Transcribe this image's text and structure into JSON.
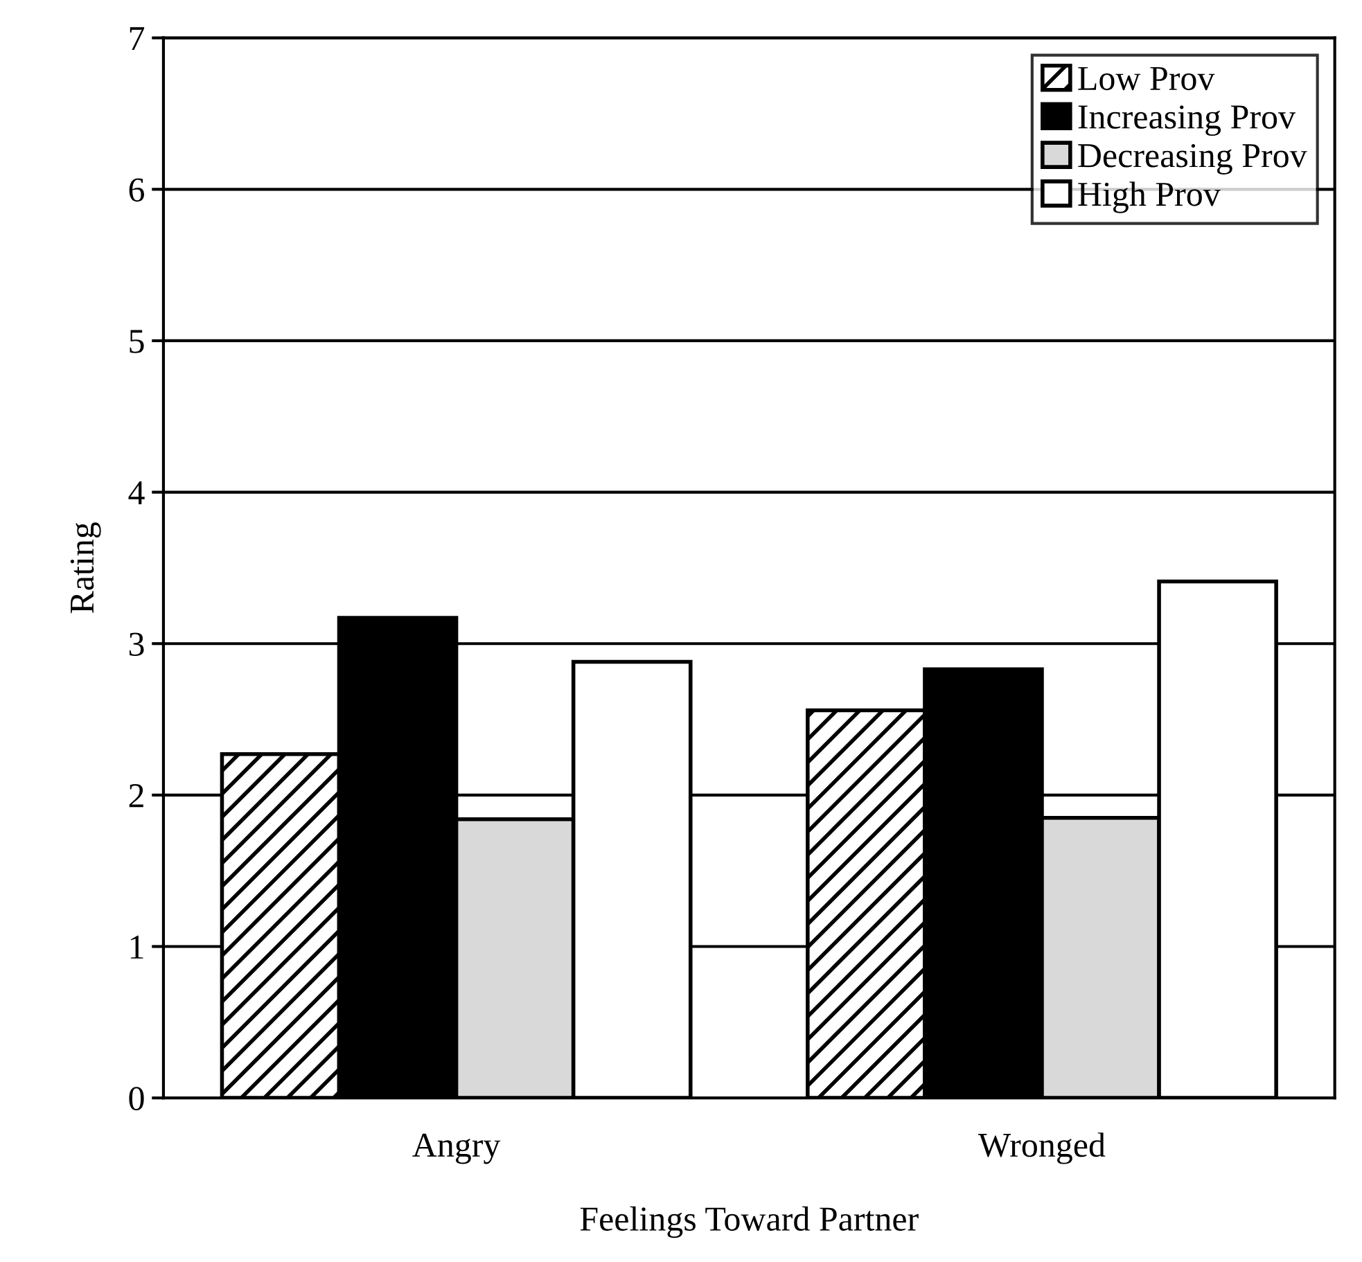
{
  "chart_data": {
    "type": "bar",
    "xlabel": "Feelings Toward Partner",
    "ylabel": "Rating",
    "categories": [
      "Angry",
      "Wronged"
    ],
    "series": [
      {
        "name": "Low Prov",
        "color": "#000000",
        "values": [
          2.27,
          2.56
        ]
      },
      {
        "name": "Increasing Prov",
        "color": "#000000",
        "values": [
          3.17,
          2.83
        ]
      },
      {
        "name": "Decreasing Prov",
        "color": "#d9d9d9",
        "values": [
          1.84,
          1.85
        ]
      },
      {
        "name": "High Prov",
        "color": "#ffffff",
        "values": [
          2.88,
          3.41
        ]
      }
    ],
    "ylim": [
      0,
      7
    ],
    "yticks": [
      0,
      1,
      2,
      3,
      4,
      5,
      6,
      7
    ],
    "grid": "y",
    "legend": "top right"
  }
}
